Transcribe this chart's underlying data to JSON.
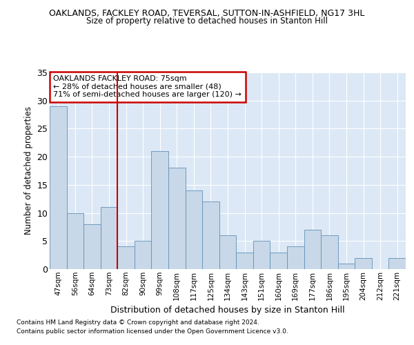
{
  "title1": "OAKLANDS, FACKLEY ROAD, TEVERSAL, SUTTON-IN-ASHFIELD, NG17 3HL",
  "title2": "Size of property relative to detached houses in Stanton Hill",
  "xlabel": "Distribution of detached houses by size in Stanton Hill",
  "ylabel": "Number of detached properties",
  "footnote1": "Contains HM Land Registry data © Crown copyright and database right 2024.",
  "footnote2": "Contains public sector information licensed under the Open Government Licence v3.0.",
  "categories": [
    "47sqm",
    "56sqm",
    "64sqm",
    "73sqm",
    "82sqm",
    "90sqm",
    "99sqm",
    "108sqm",
    "117sqm",
    "125sqm",
    "134sqm",
    "143sqm",
    "151sqm",
    "160sqm",
    "169sqm",
    "177sqm",
    "186sqm",
    "195sqm",
    "204sqm",
    "212sqm",
    "221sqm"
  ],
  "values": [
    29,
    10,
    8,
    11,
    4,
    5,
    21,
    18,
    14,
    12,
    6,
    3,
    5,
    3,
    4,
    7,
    6,
    1,
    2,
    0,
    2
  ],
  "bar_color": "#c8d8e8",
  "bar_edge_color": "#6090b8",
  "vline_color": "#cc0000",
  "annotation_title": "OAKLANDS FACKLEY ROAD: 75sqm",
  "annotation_line1": "← 28% of detached houses are smaller (48)",
  "annotation_line2": "71% of semi-detached houses are larger (120) →",
  "ylim": [
    0,
    35
  ],
  "yticks": [
    0,
    5,
    10,
    15,
    20,
    25,
    30,
    35
  ],
  "background_color": "#dce8f5",
  "grid_color": "#ffffff",
  "fig_background": "#ffffff",
  "ann_box_color": "#ffffff",
  "ann_box_edge": "#cc0000"
}
